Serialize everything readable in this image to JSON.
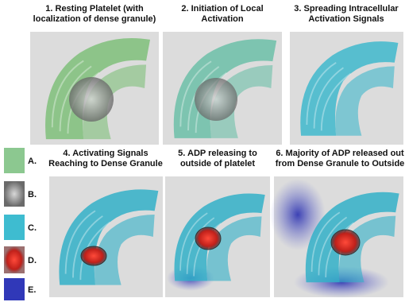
{
  "panels": [
    {
      "title_lines": [
        "1. Resting Platelet (with",
        "localization of dense granule)"
      ]
    },
    {
      "title_lines": [
        "2. Initiation of Local",
        "Activation"
      ]
    },
    {
      "title_lines": [
        "3. Spreading Intracellular",
        "Activation Signals"
      ]
    },
    {
      "title_lines": [
        "4. Activating Signals",
        "Reaching to Dense Granule"
      ]
    },
    {
      "title_lines": [
        "5. ADP releasing to",
        "outside of platelet"
      ]
    },
    {
      "title_lines": [
        "6. Majority of ADP released out",
        "from Dense Granule to Outside"
      ]
    }
  ],
  "legend": [
    "A.",
    "B.",
    "C.",
    "D.",
    "E."
  ]
}
